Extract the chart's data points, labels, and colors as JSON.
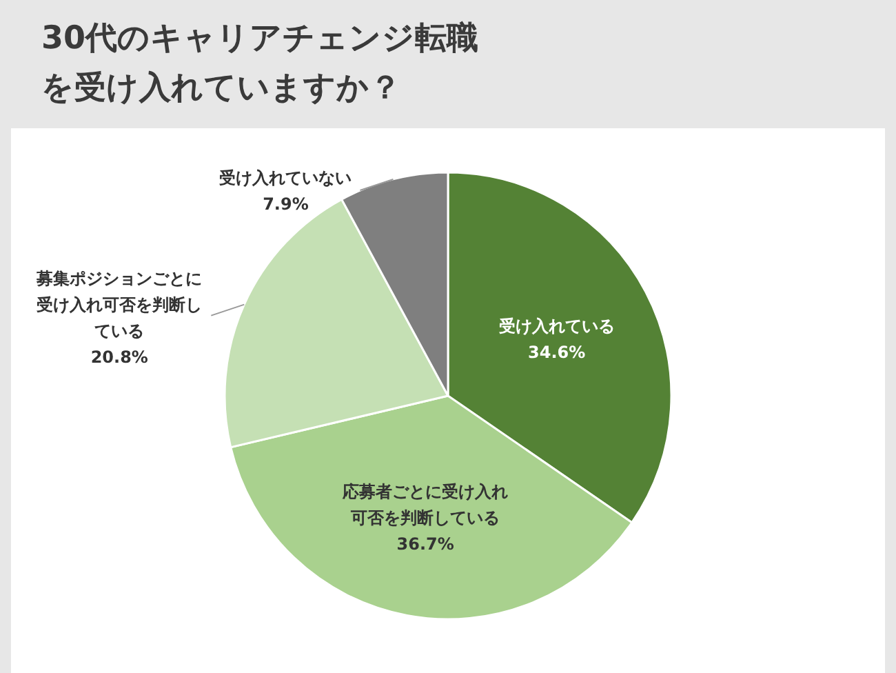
{
  "chart_data": {
    "type": "pie",
    "title": "30代のキャリアチェンジ転職を受け入れていますか？",
    "categories": [
      "受け入れている",
      "応募者ごとに受け入れ可否を判断している",
      "募集ポジションごとに受け入れ可否を判断している",
      "受け入れていない"
    ],
    "values": [
      34.6,
      36.7,
      20.8,
      7.9
    ],
    "colors": [
      "#548235",
      "#a9d18e",
      "#c5e0b4",
      "#7f7f7f"
    ],
    "value_labels": [
      "34.6%",
      "36.7%",
      "20.8%",
      "7.9%"
    ]
  }
}
